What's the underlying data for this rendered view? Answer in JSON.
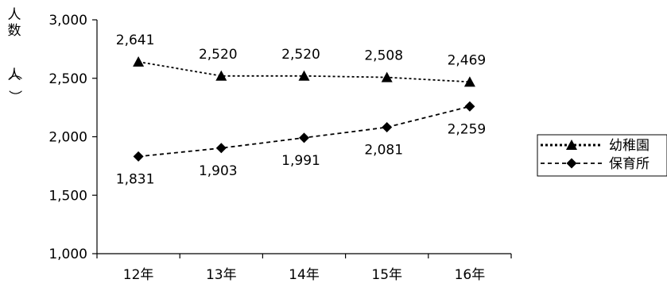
{
  "chart_data": {
    "type": "line",
    "title": "",
    "xlabel": "",
    "ylabel": "人数（人）",
    "categories": [
      "12年",
      "13年",
      "14年",
      "15年",
      "16年"
    ],
    "ylim": [
      1000,
      3000
    ],
    "yticks": [
      1000,
      1500,
      2000,
      2500,
      3000
    ],
    "ytick_labels": [
      "1,000",
      "1,500",
      "2,000",
      "2,500",
      "3,000"
    ],
    "grid": false,
    "legend_position": "right",
    "series": [
      {
        "name": "幼稚園",
        "marker": "triangle",
        "line_style": "dotted",
        "color": "#000000",
        "values": [
          2641,
          2520,
          2520,
          2508,
          2469
        ],
        "labels": [
          "2,641",
          "2,520",
          "2,520",
          "2,508",
          "2,469"
        ]
      },
      {
        "name": "保育所",
        "marker": "diamond",
        "line_style": "dashed",
        "color": "#000000",
        "values": [
          1831,
          1903,
          1991,
          2081,
          2259
        ],
        "labels": [
          "1,831",
          "1,903",
          "1,991",
          "2,081",
          "2,259"
        ]
      }
    ]
  }
}
